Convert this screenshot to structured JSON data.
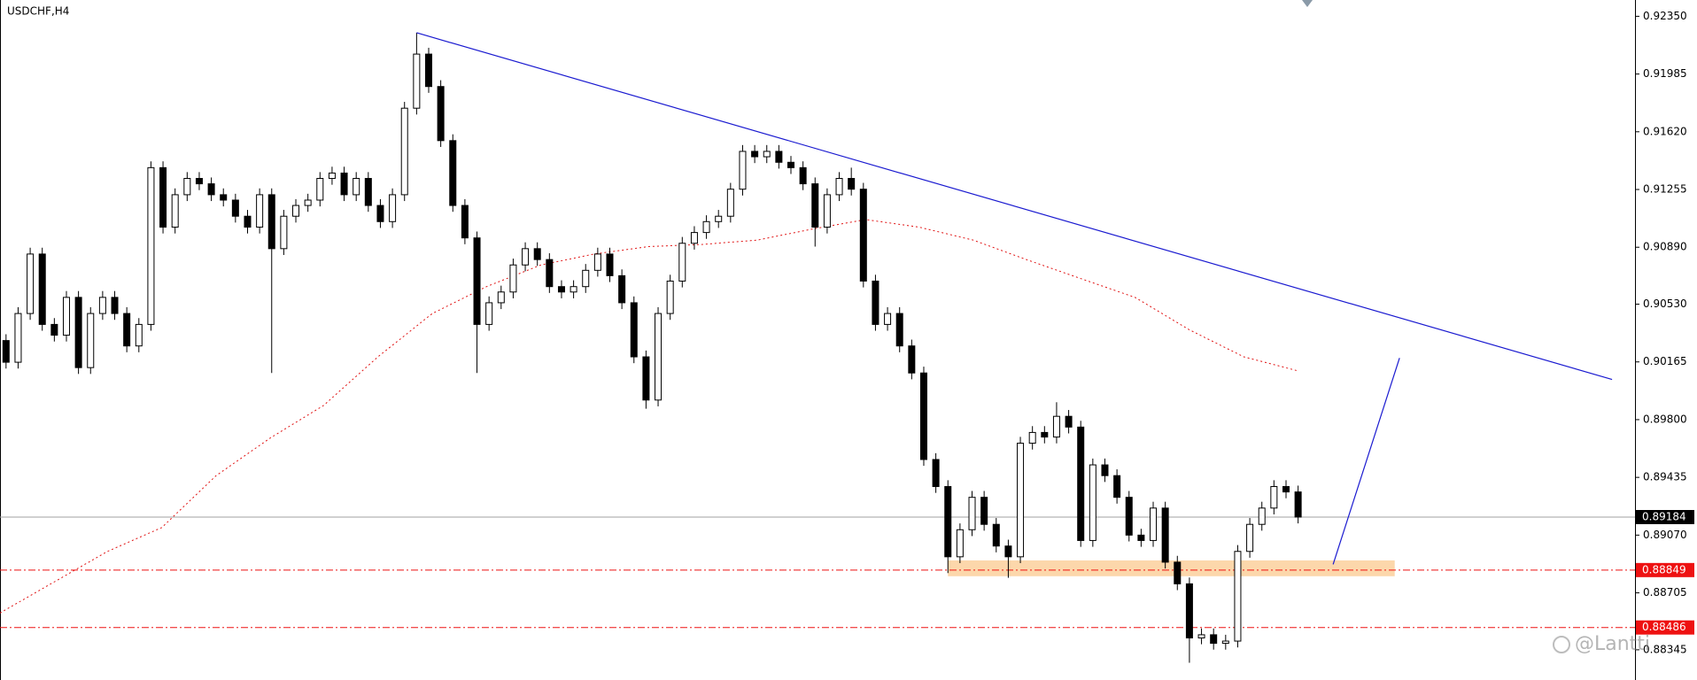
{
  "chart_data": {
    "type": "candlestick",
    "title": "USDCHF,H4",
    "up_color": "#ffffff",
    "down_color": "#000000",
    "outline_color": "#000000",
    "xlim": [
      -0.5,
      134.9
    ],
    "ylim": [
      0.88154,
      0.92453
    ],
    "yticks": [
      {
        "value": 0.9235,
        "label": "0.92350"
      },
      0.91985,
      {
        "value": 0.9162,
        "label": "0.91620"
      },
      0.91255,
      {
        "value": 0.9089,
        "label": "0.90890"
      },
      {
        "value": 0.9053,
        "label": "0.90530"
      },
      0.90165,
      {
        "value": 0.898,
        "label": "0.89800"
      },
      0.89435,
      {
        "value": 0.8907,
        "label": "0.89070"
      },
      0.88705,
      0.88345
    ],
    "open": [
      0.903,
      0.90163,
      0.90471,
      0.90847,
      0.90402,
      0.90334,
      0.90573,
      0.90129,
      0.90471,
      0.90573,
      0.90471,
      0.90266,
      0.90402,
      0.91393,
      0.91017,
      0.91222,
      0.91325,
      0.91291,
      0.91222,
      0.91188,
      0.91086,
      0.91017,
      0.91222,
      0.90881,
      0.91086,
      0.91154,
      0.91188,
      0.91325,
      0.91359,
      0.91222,
      0.91325,
      0.91154,
      0.91052,
      0.91222,
      0.91769,
      0.92111,
      0.91906,
      0.91564,
      0.91154,
      0.90949,
      0.90402,
      0.90539,
      0.90607,
      0.90778,
      0.90881,
      0.90812,
      0.90641,
      0.90607,
      0.90641,
      0.90744,
      0.90847,
      0.9071,
      0.90539,
      0.90197,
      0.89924,
      0.90471,
      0.90676,
      0.90915,
      0.90983,
      0.91052,
      0.91086,
      0.91257,
      0.91496,
      0.91462,
      0.91496,
      0.91427,
      0.91393,
      0.91291,
      0.91017,
      0.91222,
      0.91325,
      0.91257,
      0.90676,
      0.90402,
      0.90471,
      0.90266,
      0.90095,
      0.89548,
      0.89377,
      0.88933,
      0.89104,
      0.89309,
      0.89138,
      0.89001,
      0.88933,
      0.89651,
      0.89719,
      0.8969,
      0.89821,
      0.89753,
      0.89036,
      0.89514,
      0.89446,
      0.89309,
      0.8907,
      0.89036,
      0.89241,
      0.88899,
      0.88762,
      0.8842,
      0.8844,
      0.88386,
      0.884,
      0.88967,
      0.89138,
      0.89241,
      0.89377,
      0.89343
    ],
    "high": [
      0.9034,
      0.90511,
      0.90887,
      0.90887,
      0.90442,
      0.90613,
      0.90613,
      0.90511,
      0.90613,
      0.90613,
      0.90511,
      0.90442,
      0.91433,
      0.91433,
      0.91262,
      0.91365,
      0.91365,
      0.91331,
      0.91262,
      0.91228,
      0.91126,
      0.91262,
      0.91262,
      0.91126,
      0.91194,
      0.91228,
      0.91365,
      0.91399,
      0.91399,
      0.91365,
      0.91365,
      0.91194,
      0.91262,
      0.91809,
      0.92246,
      0.92151,
      0.91946,
      0.91604,
      0.91194,
      0.90989,
      0.90579,
      0.90647,
      0.90818,
      0.90921,
      0.90921,
      0.90852,
      0.90681,
      0.90681,
      0.90784,
      0.90887,
      0.90887,
      0.9075,
      0.90579,
      0.90237,
      0.90511,
      0.90716,
      0.90955,
      0.91023,
      0.91092,
      0.91126,
      0.91297,
      0.91536,
      0.91536,
      0.91536,
      0.91536,
      0.91467,
      0.91433,
      0.91331,
      0.91262,
      0.91365,
      0.91393,
      0.91297,
      0.90716,
      0.90511,
      0.90511,
      0.90306,
      0.90135,
      0.89588,
      0.89417,
      0.89144,
      0.89349,
      0.89349,
      0.89178,
      0.89041,
      0.89691,
      0.89759,
      0.89759,
      0.8991,
      0.89861,
      0.89793,
      0.89554,
      0.89554,
      0.89486,
      0.89349,
      0.8911,
      0.89281,
      0.89281,
      0.88939,
      0.88802,
      0.8848,
      0.8848,
      0.8844,
      0.89007,
      0.89178,
      0.89281,
      0.89417,
      0.89417,
      0.89383
    ],
    "low": [
      0.90123,
      0.90123,
      0.90431,
      0.90362,
      0.90294,
      0.90294,
      0.90089,
      0.90089,
      0.90431,
      0.90431,
      0.90226,
      0.90226,
      0.90362,
      0.90977,
      0.90977,
      0.91182,
      0.91251,
      0.91182,
      0.91148,
      0.91046,
      0.90977,
      0.90977,
      0.90095,
      0.90841,
      0.91046,
      0.91114,
      0.91148,
      0.91285,
      0.91182,
      0.91182,
      0.91114,
      0.91012,
      0.91012,
      0.91182,
      0.91729,
      0.91866,
      0.91524,
      0.91114,
      0.90909,
      0.90095,
      0.90362,
      0.90499,
      0.90567,
      0.90738,
      0.90772,
      0.90601,
      0.90567,
      0.90567,
      0.90601,
      0.90704,
      0.9067,
      0.90499,
      0.90157,
      0.89869,
      0.89884,
      0.90431,
      0.90636,
      0.90875,
      0.90943,
      0.91012,
      0.91046,
      0.91217,
      0.91422,
      0.91422,
      0.91387,
      0.91353,
      0.91251,
      0.90894,
      0.90977,
      0.91182,
      0.91217,
      0.90636,
      0.90362,
      0.90362,
      0.90226,
      0.90055,
      0.89508,
      0.89337,
      0.8883,
      0.88893,
      0.89064,
      0.89098,
      0.88961,
      0.888,
      0.88893,
      0.89611,
      0.8965,
      0.8965,
      0.89713,
      0.88996,
      0.88996,
      0.89406,
      0.89269,
      0.8903,
      0.88996,
      0.88996,
      0.88859,
      0.88722,
      0.88263,
      0.8838,
      0.88346,
      0.88346,
      0.8836,
      0.88927,
      0.89098,
      0.89201,
      0.89303,
      0.89144
    ],
    "close": [
      0.90163,
      0.90471,
      0.90847,
      0.90402,
      0.90334,
      0.90573,
      0.90129,
      0.90471,
      0.90573,
      0.90471,
      0.90266,
      0.90402,
      0.91393,
      0.91017,
      0.91222,
      0.91325,
      0.91291,
      0.91222,
      0.91188,
      0.91086,
      0.91017,
      0.91222,
      0.90881,
      0.91086,
      0.91154,
      0.91188,
      0.91325,
      0.91359,
      0.91222,
      0.91325,
      0.91154,
      0.91052,
      0.91222,
      0.91769,
      0.92111,
      0.91906,
      0.91564,
      0.91154,
      0.90949,
      0.90402,
      0.90539,
      0.90607,
      0.90778,
      0.90881,
      0.90812,
      0.90641,
      0.90607,
      0.90641,
      0.90744,
      0.90847,
      0.9071,
      0.90539,
      0.90197,
      0.89924,
      0.90471,
      0.90676,
      0.90915,
      0.90983,
      0.91052,
      0.91086,
      0.91257,
      0.91496,
      0.91462,
      0.91496,
      0.91427,
      0.91393,
      0.91291,
      0.91017,
      0.91222,
      0.91325,
      0.91257,
      0.90676,
      0.90402,
      0.90471,
      0.90266,
      0.90095,
      0.89548,
      0.89377,
      0.88933,
      0.89104,
      0.89309,
      0.89138,
      0.89001,
      0.88933,
      0.89651,
      0.89719,
      0.8969,
      0.89821,
      0.89753,
      0.89036,
      0.89514,
      0.89446,
      0.89309,
      0.8907,
      0.89036,
      0.89241,
      0.88899,
      0.88762,
      0.8842,
      0.8844,
      0.88386,
      0.884,
      0.88967,
      0.89138,
      0.89241,
      0.89377,
      0.89343,
      0.89184
    ],
    "ma": {
      "color": "#e01010",
      "x": [
        -0.5,
        8.4,
        12.9,
        17.4,
        21.9,
        26.3,
        30.8,
        35.3,
        39.8,
        44.3,
        48.7,
        53.2,
        57.7,
        62.2,
        66.7,
        71.2,
        75.6,
        80.1,
        84.5,
        89.1,
        93.5,
        98.0,
        102.5,
        107.0
      ],
      "values": [
        0.88578,
        0.88967,
        0.89118,
        0.89446,
        0.89685,
        0.8989,
        0.90197,
        0.90471,
        0.90641,
        0.90778,
        0.90847,
        0.90894,
        0.90908,
        0.90935,
        0.91004,
        0.91065,
        0.91017,
        0.90935,
        0.90812,
        0.90689,
        0.90573,
        0.90368,
        0.90197,
        0.90108
      ]
    },
    "trendlines": [
      {
        "color": "#1a1ad0",
        "x": [
          34,
          133
        ],
        "y": [
          0.92246,
          0.90054
        ]
      },
      {
        "color": "#1a1ad0",
        "x": [
          109.9,
          115.4
        ],
        "y": [
          0.88885,
          0.9019
        ]
      }
    ],
    "zone": {
      "color": "#fbc98f",
      "x": [
        78,
        115
      ],
      "y": [
        0.8891,
        0.8881
      ]
    },
    "current_price": {
      "value": 0.89184,
      "color": "#000000",
      "line_color": "#a0a0a0"
    },
    "levels": [
      {
        "value": 0.88849,
        "color": "#ee1111"
      },
      {
        "value": 0.88486,
        "color": "#ee1111"
      }
    ],
    "watermark": "@Lantti"
  }
}
